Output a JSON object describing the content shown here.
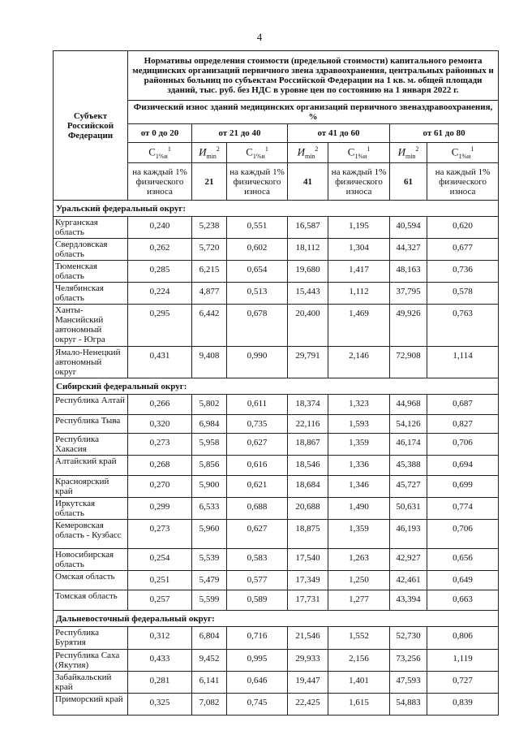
{
  "page_number": "4",
  "header": {
    "subject": "Субъект Российской Федерации",
    "title": "Нормативы определения стоимости (предельной стоимости) капитального ремонта медицинских организаций первичного звена здравоохранения, центральных районных и районных больниц по субъектам Российской Федерации на 1 кв. м. общей площади зданий, тыс. руб. без НДС в уровне цен по состоянию на 1 января 2022 г.",
    "wear": "Физический износ зданий медицинских организаций первичного звеназдравоохранения, %",
    "ranges": [
      "от 0 до 20",
      "от 21 до 40",
      "от 41 до 60",
      "от 61 до 80"
    ],
    "sym_c": "С",
    "sym_c_sub": "1%и",
    "sym_c_sup": "1",
    "sym_i": "И",
    "sym_i_sub": "min",
    "sym_i_sup": "2",
    "per_percent": "на каждый 1% физического износа",
    "imin_values": [
      "21",
      "41",
      "61"
    ]
  },
  "groups": [
    {
      "name": "Уральский федеральный округ:",
      "rows": [
        {
          "subject": "Курганская область",
          "values": [
            "0,240",
            "5,238",
            "0,551",
            "16,587",
            "1,195",
            "40,594",
            "0,620"
          ]
        },
        {
          "subject": "Свердловская область",
          "values": [
            "0,262",
            "5,720",
            "0,602",
            "18,112",
            "1,304",
            "44,327",
            "0,677"
          ]
        },
        {
          "subject": "Тюменская область",
          "values": [
            "0,285",
            "6,215",
            "0,654",
            "19,680",
            "1,417",
            "48,163",
            "0,736"
          ]
        },
        {
          "subject": "Челябинская область",
          "values": [
            "0,224",
            "4,877",
            "0,513",
            "15,443",
            "1,112",
            "37,795",
            "0,578"
          ]
        },
        {
          "subject": "Ханты-Мансийский автономный округ - Югра",
          "values": [
            "0,295",
            "6,442",
            "0,678",
            "20,400",
            "1,469",
            "49,926",
            "0,763"
          ]
        },
        {
          "subject": "Ямало-Ненецкий автономный округ",
          "values": [
            "0,431",
            "9,408",
            "0,990",
            "29,791",
            "2,146",
            "72,908",
            "1,114"
          ]
        }
      ]
    },
    {
      "name": "Сибирский федеральный округ:",
      "rows": [
        {
          "subject": "Республика Алтай",
          "values": [
            "0,266",
            "5,802",
            "0,611",
            "18,374",
            "1,323",
            "44,968",
            "0,687"
          ]
        },
        {
          "subject": "Республика Тыва",
          "values": [
            "0,320",
            "6,984",
            "0,735",
            "22,116",
            "1,593",
            "54,126",
            "0,827"
          ]
        },
        {
          "subject": "Республика Хакасия",
          "values": [
            "0,273",
            "5,958",
            "0,627",
            "18,867",
            "1,359",
            "46,174",
            "0,706"
          ]
        },
        {
          "subject": "Алтайский край",
          "values": [
            "0,268",
            "5,856",
            "0,616",
            "18,546",
            "1,336",
            "45,388",
            "0,694"
          ]
        },
        {
          "subject": "Красноярский край",
          "values": [
            "0,270",
            "5,900",
            "0,621",
            "18,684",
            "1,346",
            "45,727",
            "0,699"
          ]
        },
        {
          "subject": "Иркутская область",
          "values": [
            "0,299",
            "6,533",
            "0,688",
            "20,688",
            "1,490",
            "50,631",
            "0,774"
          ]
        },
        {
          "subject": "Кемеровская область - Кузбасс",
          "values": [
            "0,273",
            "5,960",
            "0,627",
            "18,875",
            "1,359",
            "46,193",
            "0,706"
          ]
        },
        {
          "subject": "Новосибирская область",
          "values": [
            "0,254",
            "5,539",
            "0,583",
            "17,540",
            "1,263",
            "42,927",
            "0,656"
          ]
        },
        {
          "subject": "Омская область",
          "values": [
            "0,251",
            "5,479",
            "0,577",
            "17,349",
            "1,250",
            "42,461",
            "0,649"
          ]
        },
        {
          "subject": "Томская область",
          "values": [
            "0,257",
            "5,599",
            "0,589",
            "17,731",
            "1,277",
            "43,394",
            "0,663"
          ]
        }
      ]
    },
    {
      "name": "Дальневосточный федеральный округ:",
      "rows": [
        {
          "subject": "Республика Бурятия",
          "values": [
            "0,312",
            "6,804",
            "0,716",
            "21,546",
            "1,552",
            "52,730",
            "0,806"
          ]
        },
        {
          "subject": "Республика Саха (Якутия)",
          "values": [
            "0,433",
            "9,452",
            "0,995",
            "29,933",
            "2,156",
            "73,256",
            "1,119"
          ]
        },
        {
          "subject": "Забайкальский край",
          "values": [
            "0,281",
            "6,141",
            "0,646",
            "19,447",
            "1,401",
            "47,593",
            "0,727"
          ]
        },
        {
          "subject": "Приморский край",
          "values": [
            "0,325",
            "7,082",
            "0,745",
            "22,425",
            "1,615",
            "54,883",
            "0,839"
          ]
        }
      ]
    }
  ]
}
